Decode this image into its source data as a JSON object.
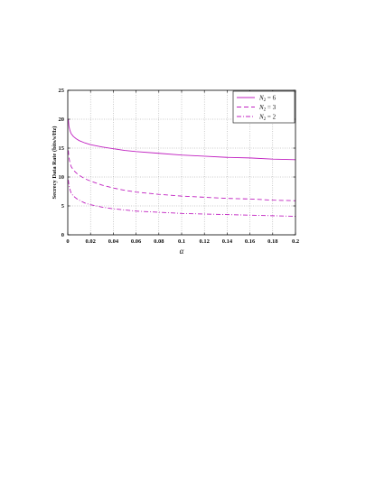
{
  "chart_data": {
    "type": "line",
    "title": "",
    "xlabel": "α",
    "ylabel": "Secrecy Data Rate (bits/s/Hz)",
    "xlim": [
      0,
      0.2
    ],
    "ylim": [
      0,
      25
    ],
    "grid": true,
    "legend_position": "top-right",
    "color": "#c020c0",
    "x_ticks": [
      "0",
      "0.02",
      "0.04",
      "0.06",
      "0.08",
      "0.1",
      "0.12",
      "0.14",
      "0.16",
      "0.18",
      "0.2"
    ],
    "y_ticks": [
      "0",
      "5",
      "10",
      "15",
      "20",
      "25"
    ],
    "x": [
      0.0005,
      0.001,
      0.002,
      0.003,
      0.005,
      0.0075,
      0.01,
      0.015,
      0.02,
      0.03,
      0.04,
      0.05,
      0.06,
      0.08,
      0.1,
      0.12,
      0.14,
      0.16,
      0.18,
      0.2
    ],
    "series": [
      {
        "name_main": "N",
        "name_sub": "2",
        "name_rest": " = 6",
        "style": "solid",
        "values": [
          20.0,
          18.8,
          18.0,
          17.5,
          17.0,
          16.6,
          16.3,
          15.9,
          15.6,
          15.2,
          14.9,
          14.6,
          14.4,
          14.1,
          13.8,
          13.6,
          13.4,
          13.3,
          13.1,
          13.0
        ]
      },
      {
        "name_main": "N",
        "name_sub": "2",
        "name_rest": " = 3",
        "style": "dashed",
        "values": [
          14.6,
          13.4,
          12.4,
          11.8,
          11.2,
          10.7,
          10.3,
          9.7,
          9.3,
          8.6,
          8.1,
          7.7,
          7.4,
          7.0,
          6.7,
          6.5,
          6.3,
          6.2,
          6.0,
          5.9
        ]
      },
      {
        "name_main": "N",
        "name_sub": "2",
        "name_rest": " = 2",
        "style": "dashdot",
        "values": [
          9.5,
          8.6,
          7.8,
          7.2,
          6.7,
          6.3,
          6.0,
          5.5,
          5.2,
          4.8,
          4.5,
          4.3,
          4.1,
          3.9,
          3.7,
          3.6,
          3.5,
          3.4,
          3.3,
          3.2
        ]
      }
    ]
  }
}
